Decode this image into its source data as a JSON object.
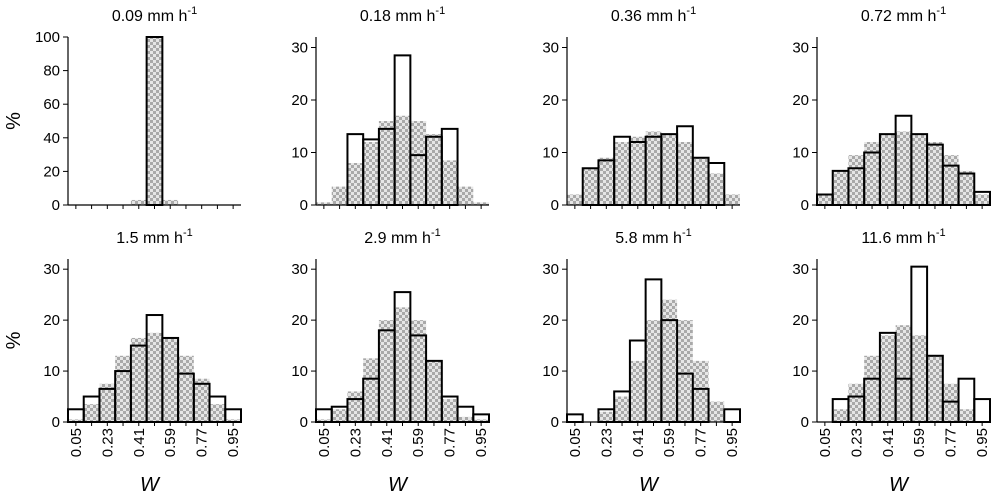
{
  "figure": {
    "x_axis_label": "W",
    "y_axis_label": "%",
    "x_tick_labels": [
      "0.05",
      "0.23",
      "0.41",
      "0.59",
      "0.77",
      "0.95"
    ],
    "colors": {
      "axis": "#000000",
      "outline_bar": "#000000",
      "hatched_fill": "#a9a9a9",
      "hatched_light": "#e6e6e6"
    }
  },
  "chart_data": [
    {
      "type": "bar",
      "title": "0.09 mm h-1",
      "title_main": "0.09 mm h",
      "title_sup": "-1",
      "xlabel": "",
      "ylabel": "%",
      "ylim": [
        0,
        100
      ],
      "yticks": [
        0,
        20,
        40,
        60,
        80,
        100
      ],
      "bin_centers": [
        0.05,
        0.14,
        0.23,
        0.32,
        0.41,
        0.5,
        0.59,
        0.68,
        0.77,
        0.86,
        0.95
      ],
      "series": [
        {
          "style": "hatched",
          "values": [
            0,
            0,
            0,
            0,
            3,
            100,
            3,
            0,
            0,
            0,
            0
          ]
        },
        {
          "style": "outline",
          "values": [
            0,
            0,
            0,
            0,
            0,
            100,
            0,
            0,
            0,
            0,
            0
          ]
        }
      ]
    },
    {
      "type": "bar",
      "title": "0.18 mm h-1",
      "title_main": "0.18 mm h",
      "title_sup": "-1",
      "xlabel": "",
      "ylabel": "",
      "ylim": [
        0,
        32
      ],
      "yticks": [
        0,
        10,
        20,
        30
      ],
      "bin_centers": [
        0.05,
        0.14,
        0.23,
        0.32,
        0.41,
        0.5,
        0.59,
        0.68,
        0.77,
        0.86,
        0.95
      ],
      "series": [
        {
          "style": "hatched",
          "values": [
            0.5,
            3.5,
            8,
            12,
            16,
            17,
            16,
            13.5,
            8.5,
            3.5,
            0.5
          ]
        },
        {
          "style": "outline",
          "values": [
            0,
            0,
            13.5,
            12.5,
            14.5,
            28.5,
            9.5,
            13,
            14.5,
            0,
            0
          ]
        }
      ]
    },
    {
      "type": "bar",
      "title": "0.36 mm h-1",
      "title_main": "0.36 mm h",
      "title_sup": "-1",
      "xlabel": "",
      "ylabel": "",
      "ylim": [
        0,
        32
      ],
      "yticks": [
        0,
        10,
        20,
        30
      ],
      "bin_centers": [
        0.05,
        0.14,
        0.23,
        0.32,
        0.41,
        0.5,
        0.59,
        0.68,
        0.77,
        0.86,
        0.95
      ],
      "series": [
        {
          "style": "hatched",
          "values": [
            2,
            7,
            9,
            12,
            13,
            14,
            13.5,
            12,
            9,
            6,
            2
          ]
        },
        {
          "style": "outline",
          "values": [
            0,
            7,
            8.5,
            13,
            12,
            13,
            13.5,
            15,
            9,
            8,
            0
          ]
        }
      ]
    },
    {
      "type": "bar",
      "title": "0.72 mm h-1",
      "title_main": "0.72 mm h",
      "title_sup": "-1",
      "xlabel": "",
      "ylabel": "",
      "ylim": [
        0,
        32
      ],
      "yticks": [
        0,
        10,
        20,
        30
      ],
      "bin_centers": [
        0.05,
        0.14,
        0.23,
        0.32,
        0.41,
        0.5,
        0.59,
        0.68,
        0.77,
        0.86,
        0.95
      ],
      "series": [
        {
          "style": "hatched",
          "values": [
            2,
            6.5,
            9.5,
            12,
            13.5,
            14,
            13.5,
            12,
            9.5,
            6.5,
            2
          ]
        },
        {
          "style": "outline",
          "values": [
            2,
            6.5,
            7,
            10,
            13.5,
            17,
            13.5,
            11.5,
            7.5,
            6,
            2.5
          ]
        }
      ]
    },
    {
      "type": "bar",
      "title": "1.5 mm h-1",
      "title_main": "1.5 mm h",
      "title_sup": "-1",
      "xlabel": "W",
      "ylabel": "%",
      "ylim": [
        0,
        32
      ],
      "yticks": [
        0,
        10,
        20,
        30
      ],
      "bin_centers": [
        0.05,
        0.14,
        0.23,
        0.32,
        0.41,
        0.5,
        0.59,
        0.68,
        0.77,
        0.86,
        0.95
      ],
      "series": [
        {
          "style": "hatched",
          "values": [
            0.5,
            3.5,
            7.5,
            13,
            16.5,
            17.5,
            16.5,
            13,
            8.5,
            3.5,
            0.5
          ]
        },
        {
          "style": "outline",
          "values": [
            2.5,
            5,
            6.5,
            10,
            15,
            21,
            16.5,
            9.5,
            7.5,
            5,
            2.5
          ]
        }
      ]
    },
    {
      "type": "bar",
      "title": "2.9 mm h-1",
      "title_main": "2.9 mm h",
      "title_sup": "-1",
      "xlabel": "W",
      "ylabel": "",
      "ylim": [
        0,
        32
      ],
      "yticks": [
        0,
        10,
        20,
        30
      ],
      "bin_centers": [
        0.05,
        0.14,
        0.23,
        0.32,
        0.41,
        0.5,
        0.59,
        0.68,
        0.77,
        0.86,
        0.95
      ],
      "series": [
        {
          "style": "hatched",
          "values": [
            0.5,
            2.5,
            6,
            12.5,
            20,
            22.5,
            20,
            12,
            4.5,
            1,
            0.5
          ]
        },
        {
          "style": "outline",
          "values": [
            2.5,
            3,
            4.5,
            8.5,
            18,
            25.5,
            17,
            12,
            5,
            3,
            1.5
          ]
        }
      ]
    },
    {
      "type": "bar",
      "title": "5.8 mm h-1",
      "title_main": "5.8 mm h",
      "title_sup": "-1",
      "xlabel": "W",
      "ylabel": "",
      "ylim": [
        0,
        32
      ],
      "yticks": [
        0,
        10,
        20,
        30
      ],
      "bin_centers": [
        0.05,
        0.14,
        0.23,
        0.32,
        0.41,
        0.5,
        0.59,
        0.68,
        0.77,
        0.86,
        0.95
      ],
      "series": [
        {
          "style": "hatched",
          "values": [
            0,
            0,
            2,
            5,
            12,
            20,
            24,
            20,
            12,
            4,
            0
          ]
        },
        {
          "style": "outline",
          "values": [
            1.5,
            0,
            2.5,
            6,
            16,
            28,
            20,
            9.5,
            6.5,
            0,
            2.5
          ]
        }
      ]
    },
    {
      "type": "bar",
      "title": "11.6 mm h-1",
      "title_main": "11.6 mm h",
      "title_sup": "-1",
      "xlabel": "W",
      "ylabel": "",
      "ylim": [
        0,
        32
      ],
      "yticks": [
        0,
        10,
        20,
        30
      ],
      "bin_centers": [
        0.05,
        0.14,
        0.23,
        0.32,
        0.41,
        0.5,
        0.59,
        0.68,
        0.77,
        0.86,
        0.95
      ],
      "series": [
        {
          "style": "hatched",
          "values": [
            0,
            2.5,
            7.5,
            13,
            17,
            19,
            17,
            13,
            7.5,
            2.5,
            0
          ]
        },
        {
          "style": "outline",
          "values": [
            0,
            4.5,
            5,
            8.5,
            17.5,
            8.5,
            30.5,
            13,
            4,
            8.5,
            4.5
          ]
        }
      ]
    }
  ]
}
